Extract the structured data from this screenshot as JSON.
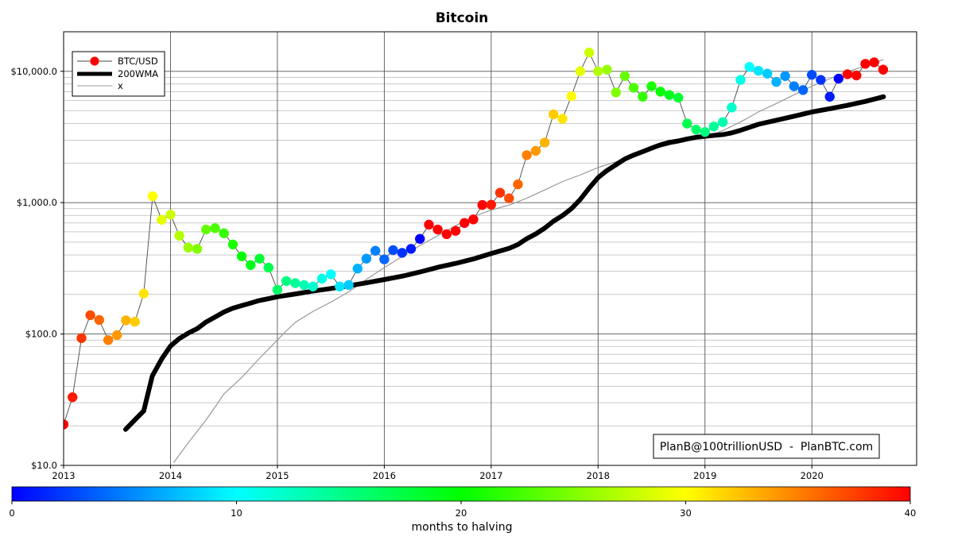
{
  "chart_data": {
    "type": "scatter",
    "title": "Bitcoin",
    "y_scale": "log",
    "ylim": [
      10,
      20000
    ],
    "xlim": [
      2013.0,
      2020.98
    ],
    "x_ticks": [
      {
        "value": 2013,
        "label": "2013"
      },
      {
        "value": 2014,
        "label": "2014"
      },
      {
        "value": 2015,
        "label": "2015"
      },
      {
        "value": 2016,
        "label": "2016"
      },
      {
        "value": 2017,
        "label": "2017"
      },
      {
        "value": 2018,
        "label": "2018"
      },
      {
        "value": 2019,
        "label": "2019"
      },
      {
        "value": 2020,
        "label": "2020"
      }
    ],
    "y_ticks": [
      {
        "value": 10,
        "label": "$10.0"
      },
      {
        "value": 100,
        "label": "$100.0"
      },
      {
        "value": 1000,
        "label": "$1,000.0"
      },
      {
        "value": 10000,
        "label": "$10,000.0"
      }
    ],
    "grid": true,
    "legend_position": "top-left",
    "legend": [
      {
        "label": "BTC/USD",
        "color": "#ff0000",
        "style": "marker-line"
      },
      {
        "label": "200WMA",
        "color": "#000000",
        "style": "thick-line"
      },
      {
        "label": "x",
        "color": "#999999",
        "style": "thin-line"
      }
    ],
    "annotation": "PlanB@100trillionUSD  -  PlanBTC.com",
    "colorbar": {
      "label": "months to halving",
      "min": 0,
      "max": 40,
      "ticks": [
        0,
        10,
        20,
        30,
        40
      ]
    },
    "series": [
      {
        "name": "BTC/USD",
        "x": [
          2013.0,
          2013.083,
          2013.167,
          2013.25,
          2013.333,
          2013.417,
          2013.5,
          2013.583,
          2013.667,
          2013.75,
          2013.833,
          2013.917,
          2014.0,
          2014.083,
          2014.167,
          2014.25,
          2014.333,
          2014.417,
          2014.5,
          2014.583,
          2014.667,
          2014.75,
          2014.833,
          2014.917,
          2015.0,
          2015.083,
          2015.167,
          2015.25,
          2015.333,
          2015.417,
          2015.5,
          2015.583,
          2015.667,
          2015.75,
          2015.833,
          2015.917,
          2016.0,
          2016.083,
          2016.167,
          2016.25,
          2016.333,
          2016.417,
          2016.5,
          2016.583,
          2016.667,
          2016.75,
          2016.833,
          2016.917,
          2017.0,
          2017.083,
          2017.167,
          2017.25,
          2017.333,
          2017.417,
          2017.5,
          2017.583,
          2017.667,
          2017.75,
          2017.833,
          2017.917,
          2018.0,
          2018.083,
          2018.167,
          2018.25,
          2018.333,
          2018.417,
          2018.5,
          2018.583,
          2018.667,
          2018.75,
          2018.833,
          2018.917,
          2019.0,
          2019.083,
          2019.167,
          2019.25,
          2019.333,
          2019.417,
          2019.5,
          2019.583,
          2019.667,
          2019.75,
          2019.833,
          2019.917,
          2020.0,
          2020.083,
          2020.167,
          2020.25,
          2020.333,
          2020.417,
          2020.5,
          2020.583,
          2020.667
        ],
        "values": [
          20.5,
          33,
          93,
          139,
          128,
          90,
          98,
          127,
          124,
          203,
          1120,
          740,
          810,
          560,
          455,
          445,
          625,
          640,
          585,
          480,
          390,
          335,
          375,
          320,
          217,
          253,
          244,
          236,
          230,
          264,
          285,
          230,
          236,
          315,
          375,
          430,
          370,
          435,
          415,
          445,
          530,
          680,
          625,
          575,
          610,
          700,
          745,
          960,
          965,
          1190,
          1080,
          1380,
          2300,
          2480,
          2870,
          4700,
          4350,
          6470,
          10000,
          13880,
          10000,
          10300,
          6900,
          9200,
          7500,
          6400,
          7700,
          7000,
          6600,
          6300,
          4000,
          3600,
          3450,
          3800,
          4100,
          5300,
          8600,
          10800,
          10100,
          9600,
          8300,
          9200,
          7700,
          7200,
          9400,
          8600,
          6400,
          8800,
          9500,
          9300,
          11400,
          11700,
          10300
        ],
        "months_to_halving": [
          40,
          39,
          38,
          37,
          36,
          35,
          34,
          33,
          32,
          31,
          30,
          29,
          28,
          27,
          26,
          25,
          24,
          23,
          22,
          21,
          20,
          19,
          18,
          17,
          16,
          15,
          14,
          13,
          12,
          11,
          10,
          9,
          8,
          7,
          6,
          5,
          4,
          3,
          2,
          1,
          0,
          46,
          45,
          44,
          43,
          42,
          41,
          40,
          39,
          38,
          37,
          36,
          35,
          34,
          33,
          32,
          31,
          30,
          29,
          28,
          27,
          26,
          25,
          24,
          23,
          22,
          21,
          20,
          19,
          18,
          17,
          16,
          15,
          14,
          13,
          12,
          11,
          10,
          9,
          8,
          7,
          6,
          5,
          4,
          3,
          2,
          1,
          0,
          47,
          46,
          45,
          44,
          43
        ]
      },
      {
        "name": "200WMA",
        "x": [
          2013.58,
          2013.65,
          2013.75,
          2013.83,
          2013.92,
          2014.0,
          2014.08,
          2014.17,
          2014.25,
          2014.33,
          2014.42,
          2014.5,
          2014.58,
          2014.67,
          2014.75,
          2014.83,
          2014.92,
          2015.0,
          2015.17,
          2015.33,
          2015.5,
          2015.67,
          2015.83,
          2016.0,
          2016.17,
          2016.33,
          2016.5,
          2016.67,
          2016.83,
          2017.0,
          2017.17,
          2017.25,
          2017.33,
          2017.42,
          2017.5,
          2017.58,
          2017.67,
          2017.75,
          2017.83,
          2017.92,
          2018.0,
          2018.08,
          2018.17,
          2018.25,
          2018.33,
          2018.42,
          2018.5,
          2018.58,
          2018.67,
          2018.75,
          2018.83,
          2018.92,
          2019.0,
          2019.17,
          2019.25,
          2019.33,
          2019.42,
          2019.5,
          2019.67,
          2019.83,
          2020.0,
          2020.17,
          2020.33,
          2020.5,
          2020.67
        ],
        "values": [
          18.8,
          21.5,
          26,
          48,
          65,
          81,
          92,
          102,
          110,
          123,
          135,
          147,
          157,
          165,
          172,
          180,
          186,
          192,
          202,
          212,
          222,
          233,
          245,
          260,
          276,
          296,
          322,
          345,
          372,
          410,
          450,
          480,
          530,
          580,
          640,
          720,
          800,
          900,
          1050,
          1300,
          1550,
          1750,
          1950,
          2150,
          2300,
          2450,
          2600,
          2750,
          2880,
          2950,
          3050,
          3150,
          3200,
          3300,
          3400,
          3550,
          3750,
          3950,
          4250,
          4550,
          4900,
          5200,
          5500,
          5900,
          6400
        ]
      },
      {
        "name": "x",
        "x": [
          2014.03,
          2014.17,
          2014.33,
          2014.42,
          2014.5,
          2014.67,
          2014.83,
          2015.0,
          2015.08,
          2015.17,
          2015.33,
          2015.5,
          2015.67,
          2015.83,
          2016.0,
          2016.17,
          2016.33,
          2016.5,
          2016.67,
          2016.83,
          2017.0,
          2017.17,
          2017.33,
          2017.5,
          2017.67,
          2017.83,
          2018.0,
          2018.17,
          2018.33,
          2018.5,
          2018.67,
          2018.83,
          2019.0,
          2019.17,
          2019.33,
          2019.5,
          2019.67,
          2019.83,
          2020.0,
          2020.17,
          2020.33,
          2020.5,
          2020.67
        ],
        "values": [
          10.5,
          15,
          22,
          28,
          35,
          47,
          65,
          90,
          105,
          123,
          148,
          175,
          210,
          260,
          320,
          390,
          470,
          560,
          670,
          780,
          880,
          960,
          1080,
          1250,
          1450,
          1620,
          1850,
          2050,
          2300,
          2550,
          2750,
          2950,
          3150,
          3550,
          4100,
          4900,
          5700,
          6600,
          7700,
          8800,
          9900,
          11000,
          12300
        ]
      }
    ]
  }
}
